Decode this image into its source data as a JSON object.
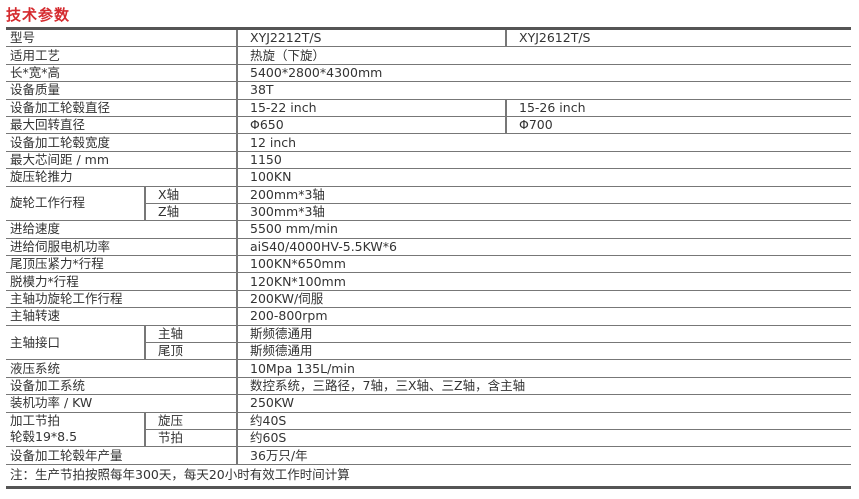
{
  "title": "技术参数",
  "models": [
    "XYJ2212T/S",
    "XYJ2612T/S"
  ],
  "header_label": "型号",
  "rows": [
    {
      "label": "适用工艺",
      "value": "热旋（下旋）"
    },
    {
      "label": "长*宽*高",
      "value": "5400*2800*4300mm"
    },
    {
      "label": "设备质量",
      "value": "38T"
    },
    {
      "label": "设备加工轮毂直径",
      "value": "15-22 inch",
      "value2": "15-26 inch"
    },
    {
      "label": "最大回转直径",
      "value": "Φ650",
      "value2": "Φ700"
    },
    {
      "label": "设备加工轮毂宽度",
      "value": "12 inch"
    },
    {
      "label": "最大芯间距 / mm",
      "value": "1150"
    },
    {
      "label": "旋压轮推力",
      "value": "100KN"
    }
  ],
  "stroke": {
    "label": "旋轮工作行程",
    "sub": [
      {
        "label": "X轴",
        "value": "200mm*3轴"
      },
      {
        "label": "Z轴",
        "value": "300mm*3轴"
      }
    ]
  },
  "rows2": [
    {
      "label": "进给速度",
      "value": "5500 mm/min"
    },
    {
      "label": "进给伺服电机功率",
      "value": "aiS40/4000HV-5.5KW*6"
    },
    {
      "label": "尾顶压紧力*行程",
      "value": "100KN*650mm"
    },
    {
      "label": "脱模力*行程",
      "value": "120KN*100mm"
    },
    {
      "label": "主轴功旋轮工作行程",
      "value": "200KW/伺服"
    },
    {
      "label": "主轴转速",
      "value": "200-800rpm"
    }
  ],
  "spindle": {
    "label": "主轴接口",
    "sub": [
      {
        "label": "主轴",
        "value": "斯频德通用"
      },
      {
        "label": "尾顶",
        "value": "斯频德通用"
      }
    ]
  },
  "rows3": [
    {
      "label": "液压系统",
      "value": "10Mpa  135L/min"
    },
    {
      "label": "设备加工系统",
      "value": "数控系统，三路径，7轴，三X轴、三Z轴，含主轴"
    },
    {
      "label": "装机功率 / KW",
      "value": "250KW"
    }
  ],
  "cycle": {
    "label_line1": "加工节拍",
    "label_line2": "轮毂19*8.5",
    "sub": [
      {
        "label": "旋压",
        "value": "约40S"
      },
      {
        "label": "节拍",
        "value": "约60S"
      }
    ]
  },
  "output": {
    "label": "设备加工轮毂年产量",
    "value": "36万只/年"
  },
  "note": "注：生产节拍按照每年300天，每天20小时有效工作时间计算",
  "colors": {
    "title": "#d52b2f",
    "border": "#555555"
  }
}
